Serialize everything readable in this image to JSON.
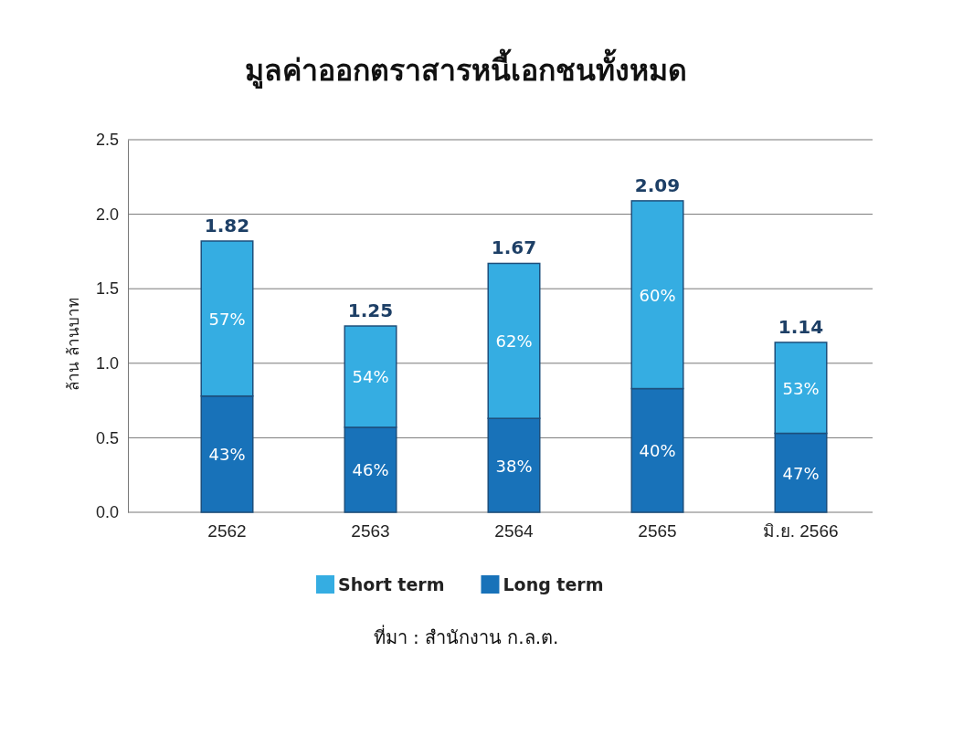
{
  "chart_data": {
    "type": "bar",
    "title": "มูลค่าออกตราสารหนี้เอกชนทั้งหมด",
    "ylabel": "ล้าน ล้านบาท",
    "categories": [
      "2562",
      "2563",
      "2564",
      "2565",
      "มิ.ย. 2566"
    ],
    "stacked": true,
    "series": [
      {
        "name": "Long term",
        "color": "#1872b9",
        "values": [
          0.78,
          0.57,
          0.63,
          0.83,
          0.53
        ]
      },
      {
        "name": "Short term",
        "color": "#35ade2",
        "values": [
          1.04,
          0.68,
          1.04,
          1.26,
          0.61
        ]
      }
    ],
    "totals": [
      "1.82",
      "1.25",
      "1.67",
      "2.09",
      "1.14"
    ],
    "ylim": [
      0,
      2.5
    ],
    "yticks": [
      {
        "value": 0,
        "label": "0.0"
      },
      {
        "value": 0.5,
        "label": "0.5"
      },
      {
        "value": 1,
        "label": "1.0"
      },
      {
        "value": 1.5,
        "label": "1.5"
      },
      {
        "value": 2,
        "label": "2.0"
      },
      {
        "value": 2.5,
        "label": "2.5"
      }
    ],
    "grid": "y",
    "legend": "bottom",
    "annotations": [
      "43%",
      "46%",
      "38%",
      "40%",
      "47%",
      "57%",
      "54%",
      "62%",
      "60%",
      "53%",
      "ที่มา : สำนักงาน ก.ล.ต."
    ]
  }
}
